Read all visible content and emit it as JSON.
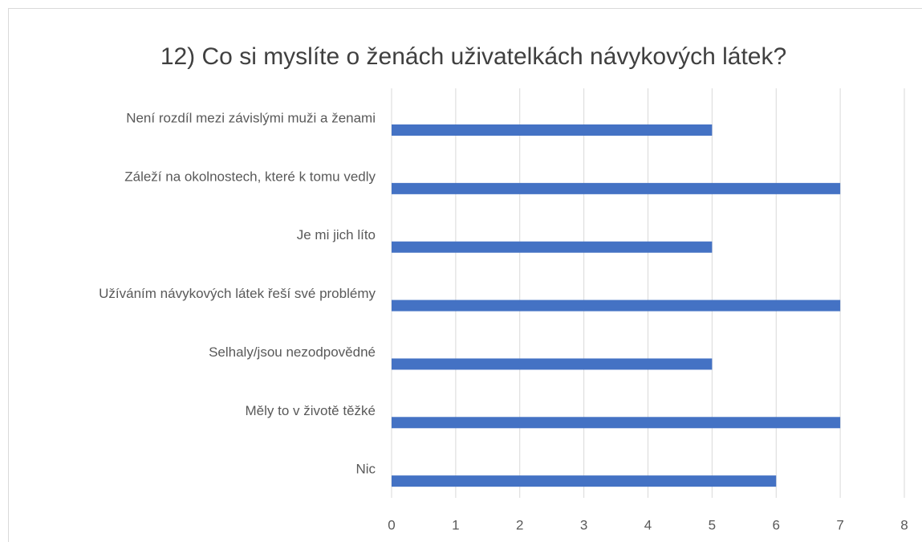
{
  "chart_data": {
    "type": "bar",
    "orientation": "horizontal",
    "title": "12) Co si myslíte o ženách uživatelkách návykových látek?",
    "categories": [
      "Není rozdíl mezi závislými muži a ženami",
      "Záleží na okolnostech, které k tomu vedly",
      "Je mi jich líto",
      "Užíváním návykových látek řeší své problémy",
      "Selhaly/jsou nezodpovědné",
      "Měly to v životě těžké",
      "Nic"
    ],
    "values": [
      5,
      7,
      5,
      7,
      5,
      7,
      6
    ],
    "color": "#4472c4",
    "xlim": [
      0,
      8
    ],
    "xticks": [
      0,
      1,
      2,
      3,
      4,
      5,
      6,
      7,
      8
    ],
    "grid": true
  }
}
